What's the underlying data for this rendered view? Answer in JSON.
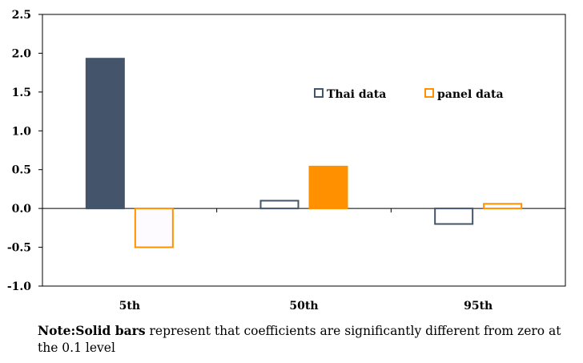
{
  "chart_data": {
    "type": "bar",
    "categories": [
      "5th",
      "50th",
      "95th"
    ],
    "series": [
      {
        "name": "Thai data",
        "color": "#44546a",
        "values": [
          1.93,
          0.1,
          -0.2
        ],
        "significant": [
          true,
          false,
          false
        ]
      },
      {
        "name": "panel data",
        "color": "#ff9100",
        "values": [
          -0.5,
          0.54,
          0.06
        ],
        "significant": [
          false,
          true,
          false
        ]
      }
    ],
    "ylim": [
      -1.0,
      2.5
    ],
    "yticks": [
      "2.5",
      "2.0",
      "1.5",
      "1.0",
      "0.5",
      "0.0",
      "-0.5",
      "-1.0"
    ],
    "ytick_values": [
      2.5,
      2.0,
      1.5,
      1.0,
      0.5,
      0.0,
      -0.5,
      -1.0
    ],
    "grid": false,
    "legend_position": "top-right, inside plot"
  },
  "note": {
    "bold": "Note:Solid bars",
    "text": " represent that coefficients are significantly different from zero at the 0.1 level"
  }
}
